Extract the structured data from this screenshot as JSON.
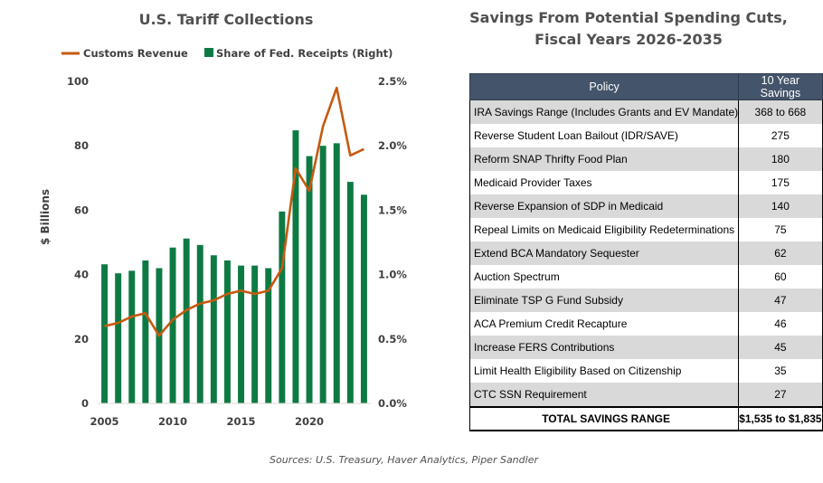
{
  "chart_data": {
    "type": "bar",
    "title": "U.S. Tariff Collections",
    "ylabel": "$ Billions",
    "ylim": [
      0,
      100
    ],
    "y_ticks": [
      "0",
      "20",
      "40",
      "60",
      "80",
      "100"
    ],
    "y2lim": [
      0,
      2.5
    ],
    "y2_ticks": [
      "0.0%",
      "0.5%",
      "1.0%",
      "1.5%",
      "2.0%",
      "2.5%"
    ],
    "x_ticks": [
      "2005",
      "2010",
      "2015",
      "2020"
    ],
    "x": [
      2005,
      2006,
      2007,
      2008,
      2009,
      2010,
      2011,
      2012,
      2013,
      2014,
      2015,
      2016,
      2017,
      2018,
      2019,
      2020,
      2021,
      2022,
      2023,
      2024
    ],
    "legend_position": "top",
    "grid": false,
    "series": [
      {
        "name": "Customs Revenue",
        "kind": "line",
        "axis": "left",
        "color": "#c55a11",
        "values": [
          24,
          25,
          27,
          28,
          21,
          26,
          29,
          31,
          32,
          34,
          35,
          34,
          35,
          42,
          73,
          66,
          86,
          98,
          77,
          79
        ]
      },
      {
        "name": "Share of Fed. Receipts (Right)",
        "kind": "bar",
        "axis": "right",
        "color": "#0e7a43",
        "values": [
          1.08,
          1.01,
          1.03,
          1.11,
          1.05,
          1.21,
          1.28,
          1.23,
          1.15,
          1.11,
          1.07,
          1.07,
          1.05,
          1.49,
          2.12,
          1.92,
          2.0,
          2.02,
          1.72,
          1.62
        ]
      }
    ]
  },
  "table": {
    "title_line1": "Savings From Potential Spending Cuts,",
    "title_line2": "Fiscal Years 2026-2035",
    "header_policy": "Policy",
    "header_savings": "10 Year Savings",
    "rows": [
      {
        "policy": "IRA Savings Range (Includes Grants and EV Mandate)",
        "savings": "368 to 668"
      },
      {
        "policy": "Reverse Student Loan Bailout (IDR/SAVE)",
        "savings": "275"
      },
      {
        "policy": "Reform SNAP Thrifty Food Plan",
        "savings": "180"
      },
      {
        "policy": "Medicaid Provider Taxes",
        "savings": "175"
      },
      {
        "policy": "Reverse Expansion of SDP in Medicaid",
        "savings": "140"
      },
      {
        "policy": "Repeal Limits on Medicaid Eligibility Redeterminations",
        "savings": "75"
      },
      {
        "policy": "Extend BCA Mandatory Sequester",
        "savings": "62"
      },
      {
        "policy": "Auction Spectrum",
        "savings": "60"
      },
      {
        "policy": "Eliminate TSP G Fund Subsidy",
        "savings": "47"
      },
      {
        "policy": "ACA Premium Credit Recapture",
        "savings": "46"
      },
      {
        "policy": "Increase FERS Contributions",
        "savings": "45"
      },
      {
        "policy": "Limit Health Eligibility Based on Citizenship",
        "savings": "35"
      },
      {
        "policy": "CTC SSN Requirement",
        "savings": "27"
      }
    ],
    "total_label": "TOTAL SAVINGS RANGE",
    "total_value": "$1,535 to $1,835"
  },
  "sources": "Sources: U.S. Treasury, Haver Analytics, Piper Sandler"
}
